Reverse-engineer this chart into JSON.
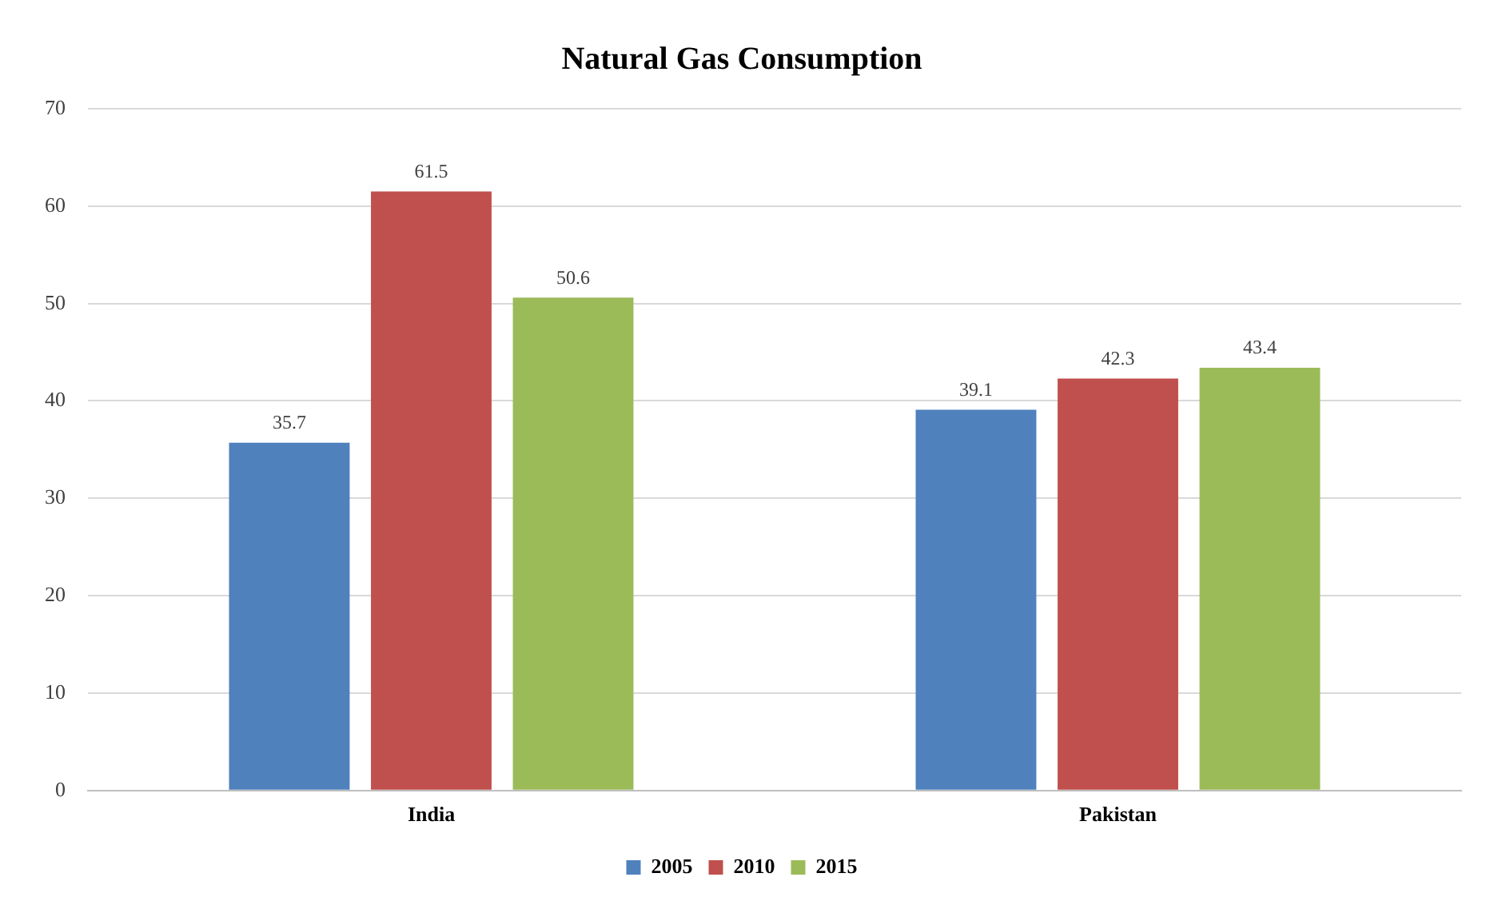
{
  "chart_data": {
    "type": "bar",
    "title": "Natural Gas Consumption",
    "categories": [
      "India",
      "Pakistan"
    ],
    "series": [
      {
        "name": "2005",
        "color": "#4f81bd",
        "values": [
          35.7,
          39.1
        ]
      },
      {
        "name": "2010",
        "color": "#c0504d",
        "values": [
          61.5,
          42.3
        ]
      },
      {
        "name": "2015",
        "color": "#9bbb59",
        "values": [
          50.6,
          43.4
        ]
      }
    ],
    "ylim": [
      0,
      70
    ],
    "yticks": [
      0,
      10,
      20,
      30,
      40,
      50,
      60,
      70
    ],
    "grid": "y",
    "legend": "bottom",
    "data_labels": true
  }
}
